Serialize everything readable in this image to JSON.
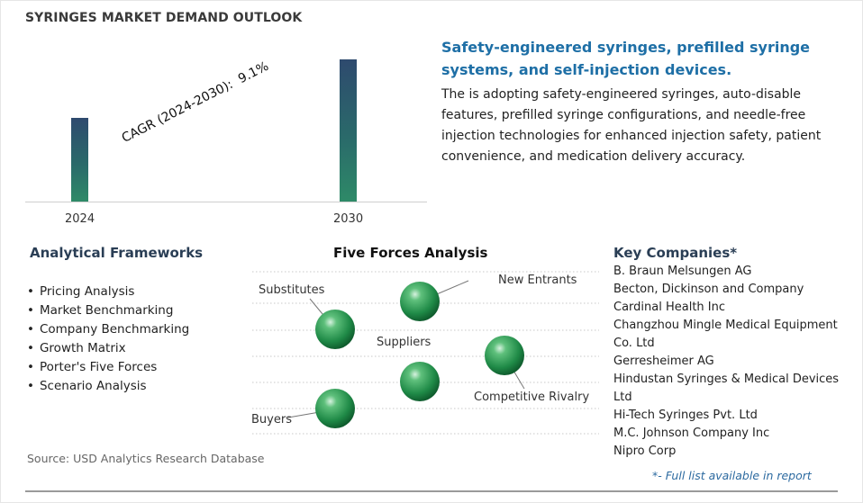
{
  "header": {
    "title": "SYRINGES MARKET DEMAND OUTLOOK"
  },
  "chart_data": {
    "type": "bar",
    "categories": [
      "2024",
      "2030"
    ],
    "values": [
      1.0,
      1.69
    ],
    "annotation": {
      "label": "CAGR (2024-2030):",
      "value": "9.1%"
    }
  },
  "highlight": {
    "heading": "Safety-engineered syringes, prefilled syringe systems, and self-injection devices.",
    "body": "The is adopting safety-engineered syringes, auto-disable features, prefilled syringe configurations, and needle-free injection technologies for enhanced injection safety, patient convenience, and medication delivery accuracy."
  },
  "frameworks": {
    "title": "Analytical Frameworks",
    "items": [
      "Pricing Analysis",
      "Market Benchmarking",
      "Company Benchmarking",
      "Growth Matrix",
      "Porter's Five Forces",
      "Scenario Analysis"
    ]
  },
  "five_forces": {
    "title": "Five Forces Analysis",
    "labels": {
      "new_entrants": "New Entrants",
      "substitutes": "Substitutes",
      "suppliers": "Suppliers",
      "competitive_rivalry": "Competitive Rivalry",
      "buyers": "Buyers"
    }
  },
  "companies": {
    "title": "Key Companies*",
    "items": [
      "B. Braun Melsungen AG",
      "Becton, Dickinson and Company",
      "Cardinal Health Inc",
      "Changzhou Mingle Medical Equipment Co. Ltd",
      "Gerresheimer AG",
      "Hindustan Syringes & Medical Devices Ltd",
      "Hi-Tech Syringes Pvt. Ltd",
      "M.C. Johnson Company Inc",
      "Nipro Corp"
    ],
    "note": "*- Full list available in report"
  },
  "source": "Source: USD Analytics Research Database"
}
